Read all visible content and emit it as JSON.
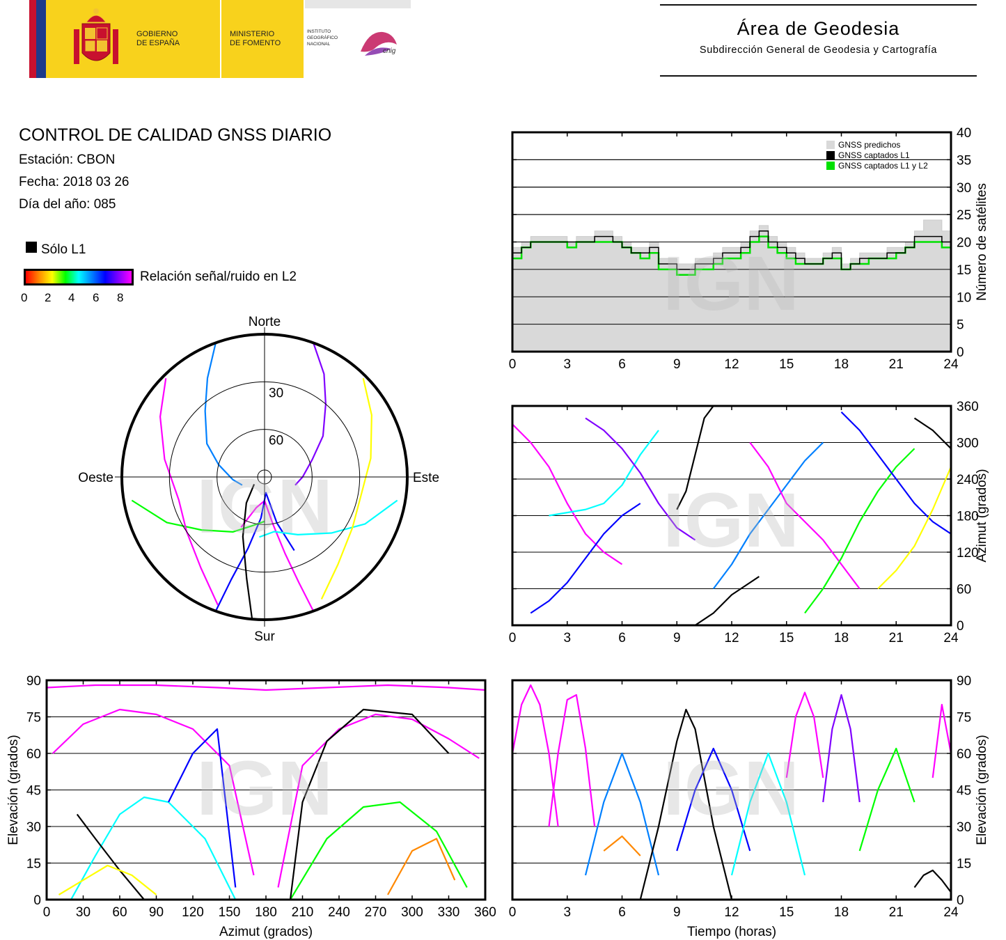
{
  "header": {
    "gov_line1": "GOBIERNO",
    "gov_line2": "DE ESPAÑA",
    "ministry_line1": "MINISTERIO",
    "ministry_line2": "DE FOMENTO",
    "ign_line1": "INSTITUTO",
    "ign_line2": "GEOGRÁFICO",
    "ign_line3": "NACIONAL",
    "cnig": "cnig",
    "area_title": "Área de Geodesia",
    "area_subtitle": "Subdirección General de Geodesia y Cartografía"
  },
  "info": {
    "title": "CONTROL DE CALIDAD GNSS DIARIO",
    "station": "Estación: CBON",
    "date": "Fecha: 2018 03 26",
    "doy": "Día del año: 085"
  },
  "legend": {
    "l1_only": "Sólo L1",
    "snr_label": "Relación señal/ruido en L2",
    "snr_ticks": [
      "0",
      "2",
      "4",
      "6",
      "8"
    ]
  },
  "watermark": "IGN",
  "colors": {
    "predicted": "#d9d9d9",
    "l1": "#000000",
    "l1l2": "#00e000",
    "snr_scale": [
      "#ff0000",
      "#ff8800",
      "#ffff00",
      "#00ff00",
      "#00ffff",
      "#0080ff",
      "#0000ff",
      "#8000ff",
      "#ff00ff"
    ]
  },
  "chart_data": [
    {
      "type": "area",
      "id": "satellite-count",
      "x_ticks": [
        "0",
        "3",
        "6",
        "9",
        "12",
        "15",
        "18",
        "21",
        "24"
      ],
      "y_ticks": [
        "0",
        "5",
        "10",
        "15",
        "20",
        "25",
        "30",
        "35",
        "40"
      ],
      "xlim": [
        0,
        24
      ],
      "ylim": [
        0,
        40
      ],
      "ylabel": "Número de satélites",
      "grid": true,
      "legend_position": "top-right",
      "legend": [
        "GNSS predichos",
        "GNSS captados L1",
        "GNSS captados L1 y L2"
      ],
      "x": [
        0,
        0.5,
        1,
        1.5,
        2,
        2.5,
        3,
        3.5,
        4,
        4.5,
        5,
        5.5,
        6,
        6.5,
        7,
        7.5,
        8,
        8.5,
        9,
        9.5,
        10,
        10.5,
        11,
        11.5,
        12,
        12.5,
        13,
        13.5,
        14,
        14.5,
        15,
        15.5,
        16,
        16.5,
        17,
        17.5,
        18,
        18.5,
        19,
        19.5,
        20,
        20.5,
        21,
        21.5,
        22,
        22.5,
        23,
        23.5,
        24
      ],
      "series": [
        {
          "name": "GNSS predichos",
          "values": [
            19,
            20,
            21,
            21,
            21,
            21,
            20,
            21,
            21,
            22,
            22,
            21,
            20,
            19,
            19,
            20,
            17,
            17,
            16,
            16,
            17,
            17,
            18,
            19,
            19,
            20,
            22,
            23,
            21,
            20,
            19,
            18,
            17,
            17,
            18,
            19,
            16,
            17,
            18,
            18,
            18,
            19,
            19,
            20,
            22,
            24,
            24,
            22,
            19
          ]
        },
        {
          "name": "GNSS captados L1",
          "values": [
            18,
            19,
            20,
            20,
            20,
            20,
            20,
            20,
            20,
            21,
            21,
            20,
            19,
            18,
            18,
            19,
            16,
            16,
            15,
            15,
            16,
            16,
            17,
            18,
            18,
            19,
            21,
            22,
            20,
            19,
            18,
            17,
            16,
            16,
            17,
            18,
            15,
            16,
            17,
            17,
            17,
            18,
            18,
            19,
            21,
            21,
            21,
            20,
            18
          ]
        },
        {
          "name": "GNSS captados L1 y L2",
          "values": [
            17,
            19,
            20,
            20,
            20,
            20,
            19,
            20,
            20,
            20,
            20,
            20,
            19,
            18,
            17,
            18,
            15,
            15,
            14,
            14,
            15,
            15,
            16,
            17,
            17,
            18,
            20,
            21,
            19,
            18,
            17,
            16,
            16,
            16,
            17,
            17,
            15,
            16,
            16,
            17,
            17,
            17,
            18,
            19,
            20,
            20,
            20,
            19,
            17
          ]
        }
      ]
    },
    {
      "type": "scatter",
      "id": "sky-plot",
      "labels": {
        "north": "Norte",
        "south": "Sur",
        "east": "Este",
        "west": "Oeste"
      },
      "elevation_rings": [
        "30",
        "60"
      ],
      "units": "azimuth (degrees) / elevation (degrees)",
      "tracks": [
        {
          "az": [
            20,
            30,
            40,
            55,
            70,
            90,
            105
          ],
          "el": [
            0,
            15,
            30,
            45,
            58,
            66,
            70
          ],
          "snr": 7
        },
        {
          "az": [
            340,
            330,
            318,
            300,
            285,
            265,
            250
          ],
          "el": [
            0,
            18,
            34,
            48,
            60,
            70,
            75
          ],
          "snr": 5
        },
        {
          "az": [
            160,
            162,
            165,
            170,
            180,
            195,
            205
          ],
          "el": [
            0,
            20,
            40,
            60,
            75,
            70,
            55
          ],
          "snr": 8
        },
        {
          "az": [
            200,
            198,
            193,
            185,
            175,
            165,
            158
          ],
          "el": [
            0,
            22,
            44,
            64,
            80,
            60,
            40
          ],
          "snr": 6
        },
        {
          "az": [
            100,
            115,
            130,
            150,
            170,
            185
          ],
          "el": [
            5,
            20,
            35,
            48,
            55,
            52
          ],
          "snr": 4
        },
        {
          "az": [
            260,
            245,
            230,
            210,
            195,
            180
          ],
          "el": [
            5,
            22,
            38,
            50,
            58,
            62
          ],
          "snr": 3
        },
        {
          "az": [
            45,
            60,
            80,
            100,
            120,
            140,
            155
          ],
          "el": [
            2,
            12,
            22,
            28,
            26,
            18,
            5
          ],
          "snr": 2
        },
        {
          "az": [
            315,
            300,
            280,
            255,
            235,
            215,
            200
          ],
          "el": [
            2,
            14,
            26,
            34,
            30,
            20,
            4
          ],
          "snr": 8
        },
        {
          "az": [
            185,
            190,
            200,
            215,
            235
          ],
          "el": [
            0,
            25,
            50,
            70,
            82
          ],
          "snr": 0
        }
      ]
    },
    {
      "type": "scatter",
      "id": "azimuth-vs-time",
      "x_ticks": [
        "0",
        "3",
        "6",
        "9",
        "12",
        "15",
        "18",
        "21",
        "24"
      ],
      "y_ticks": [
        "0",
        "60",
        "120",
        "180",
        "240",
        "300",
        "360"
      ],
      "xlim": [
        0,
        24
      ],
      "ylim": [
        0,
        360
      ],
      "ylabel": "Azimut (grados)",
      "grid": true,
      "tracks": [
        {
          "t": [
            0,
            1,
            2,
            3,
            4,
            5,
            6
          ],
          "v": [
            330,
            300,
            260,
            200,
            150,
            120,
            100
          ],
          "snr": 8
        },
        {
          "t": [
            1,
            2,
            3,
            4,
            5,
            6,
            7
          ],
          "v": [
            20,
            40,
            70,
            110,
            150,
            180,
            200
          ],
          "snr": 6
        },
        {
          "t": [
            2,
            3,
            4,
            5,
            6,
            7,
            8
          ],
          "v": [
            180,
            185,
            190,
            200,
            230,
            280,
            320
          ],
          "snr": 4
        },
        {
          "t": [
            4,
            5,
            6,
            7,
            8,
            9,
            10
          ],
          "v": [
            340,
            320,
            290,
            250,
            200,
            160,
            140
          ],
          "snr": 7
        },
        {
          "t": [
            9,
            9.5,
            10,
            10.5,
            11
          ],
          "v": [
            190,
            220,
            280,
            340,
            360
          ],
          "snr": 0
        },
        {
          "t": [
            10,
            11,
            12,
            13,
            13.5
          ],
          "v": [
            0,
            20,
            50,
            70,
            80
          ],
          "snr": 0
        },
        {
          "t": [
            11,
            12,
            13,
            14,
            15,
            16,
            17
          ],
          "v": [
            60,
            100,
            150,
            190,
            230,
            270,
            300
          ],
          "snr": 5
        },
        {
          "t": [
            13,
            14,
            15,
            16,
            17,
            18,
            19
          ],
          "v": [
            300,
            260,
            200,
            170,
            140,
            100,
            60
          ],
          "snr": 8
        },
        {
          "t": [
            16,
            17,
            18,
            19,
            20,
            21,
            22
          ],
          "v": [
            20,
            60,
            110,
            170,
            220,
            260,
            290
          ],
          "snr": 3
        },
        {
          "t": [
            18,
            19,
            20,
            21,
            22,
            23,
            24
          ],
          "v": [
            350,
            320,
            280,
            240,
            200,
            170,
            150
          ],
          "snr": 6
        },
        {
          "t": [
            20,
            21,
            22,
            23,
            24
          ],
          "v": [
            60,
            90,
            130,
            190,
            260
          ],
          "snr": 2
        },
        {
          "t": [
            22,
            22.5,
            23,
            23.5,
            24
          ],
          "v": [
            340,
            330,
            320,
            305,
            290
          ],
          "snr": 0
        }
      ]
    },
    {
      "type": "scatter",
      "id": "elevation-vs-azimuth",
      "x_ticks": [
        "0",
        "30",
        "60",
        "90",
        "120",
        "150",
        "180",
        "210",
        "240",
        "270",
        "300",
        "330",
        "360"
      ],
      "y_ticks": [
        "0",
        "15",
        "30",
        "45",
        "60",
        "75",
        "90"
      ],
      "xlim": [
        0,
        360
      ],
      "ylim": [
        0,
        90
      ],
      "xlabel": "Azimut (grados)",
      "ylabel": "Elevación (grados)",
      "grid": true,
      "tracks": [
        {
          "az": [
            5,
            30,
            60,
            90,
            120,
            150,
            170
          ],
          "el": [
            60,
            72,
            78,
            76,
            70,
            55,
            10
          ],
          "snr": 8
        },
        {
          "az": [
            190,
            210,
            240,
            270,
            300,
            330,
            355
          ],
          "el": [
            5,
            55,
            70,
            76,
            74,
            66,
            58
          ],
          "snr": 8
        },
        {
          "az": [
            20,
            40,
            60,
            80,
            100,
            130,
            155
          ],
          "el": [
            0,
            18,
            35,
            42,
            40,
            25,
            0
          ],
          "snr": 4
        },
        {
          "az": [
            200,
            230,
            260,
            290,
            320,
            345
          ],
          "el": [
            0,
            25,
            38,
            40,
            28,
            5
          ],
          "snr": 3
        },
        {
          "az": [
            25,
            40,
            60,
            80
          ],
          "el": [
            35,
            25,
            12,
            0
          ],
          "snr": 0
        },
        {
          "az": [
            200,
            210,
            230,
            260,
            300,
            330
          ],
          "el": [
            0,
            40,
            65,
            78,
            76,
            60
          ],
          "snr": 0
        },
        {
          "az": [
            280,
            300,
            320,
            335
          ],
          "el": [
            2,
            20,
            25,
            8
          ],
          "snr": 1
        },
        {
          "az": [
            10,
            30,
            50,
            70,
            90
          ],
          "el": [
            2,
            8,
            14,
            10,
            2
          ],
          "snr": 2
        },
        {
          "az": [
            100,
            120,
            140,
            155
          ],
          "el": [
            40,
            60,
            70,
            5
          ],
          "snr": 6
        },
        {
          "az": [
            0,
            40,
            90,
            140,
            180,
            230,
            280,
            330,
            360
          ],
          "el": [
            87,
            88,
            88,
            87,
            86,
            87,
            88,
            87,
            86
          ],
          "snr": 8
        }
      ]
    },
    {
      "type": "scatter",
      "id": "elevation-vs-time",
      "x_ticks": [
        "0",
        "3",
        "6",
        "9",
        "12",
        "15",
        "18",
        "21",
        "24"
      ],
      "y_ticks": [
        "0",
        "15",
        "30",
        "45",
        "60",
        "75",
        "90"
      ],
      "xlim": [
        0,
        24
      ],
      "ylim": [
        0,
        90
      ],
      "xlabel": "Tiempo (horas)",
      "ylabel": "Elevación (grados)",
      "grid": true,
      "tracks": [
        {
          "t": [
            0,
            0.5,
            1,
            1.5,
            2,
            2.5
          ],
          "v": [
            60,
            80,
            88,
            80,
            60,
            30
          ],
          "snr": 8
        },
        {
          "t": [
            2,
            2.5,
            3,
            3.5,
            4,
            4.5
          ],
          "v": [
            30,
            60,
            82,
            84,
            62,
            30
          ],
          "snr": 8
        },
        {
          "t": [
            4,
            5,
            6,
            7,
            8
          ],
          "v": [
            10,
            40,
            60,
            40,
            10
          ],
          "snr": 5
        },
        {
          "t": [
            7,
            8,
            9,
            9.5,
            10,
            11,
            12
          ],
          "v": [
            0,
            30,
            65,
            78,
            70,
            30,
            0
          ],
          "snr": 0
        },
        {
          "t": [
            9,
            10,
            11,
            12,
            13
          ],
          "v": [
            20,
            45,
            62,
            45,
            20
          ],
          "snr": 6
        },
        {
          "t": [
            12,
            13,
            14,
            15,
            16
          ],
          "v": [
            10,
            40,
            60,
            40,
            10
          ],
          "snr": 4
        },
        {
          "t": [
            15,
            15.5,
            16,
            16.5,
            17
          ],
          "v": [
            50,
            75,
            85,
            75,
            50
          ],
          "snr": 8
        },
        {
          "t": [
            17,
            17.5,
            18,
            18.5,
            19
          ],
          "v": [
            40,
            70,
            84,
            70,
            40
          ],
          "snr": 7
        },
        {
          "t": [
            19,
            20,
            21,
            22
          ],
          "v": [
            20,
            45,
            62,
            40
          ],
          "snr": 3
        },
        {
          "t": [
            22,
            22.5,
            23,
            23.5,
            24
          ],
          "v": [
            5,
            10,
            12,
            8,
            3
          ],
          "snr": 0
        },
        {
          "t": [
            23,
            23.5,
            24
          ],
          "v": [
            50,
            80,
            60
          ],
          "snr": 8
        },
        {
          "t": [
            5,
            6,
            7
          ],
          "v": [
            20,
            26,
            18
          ],
          "snr": 1
        }
      ]
    }
  ]
}
